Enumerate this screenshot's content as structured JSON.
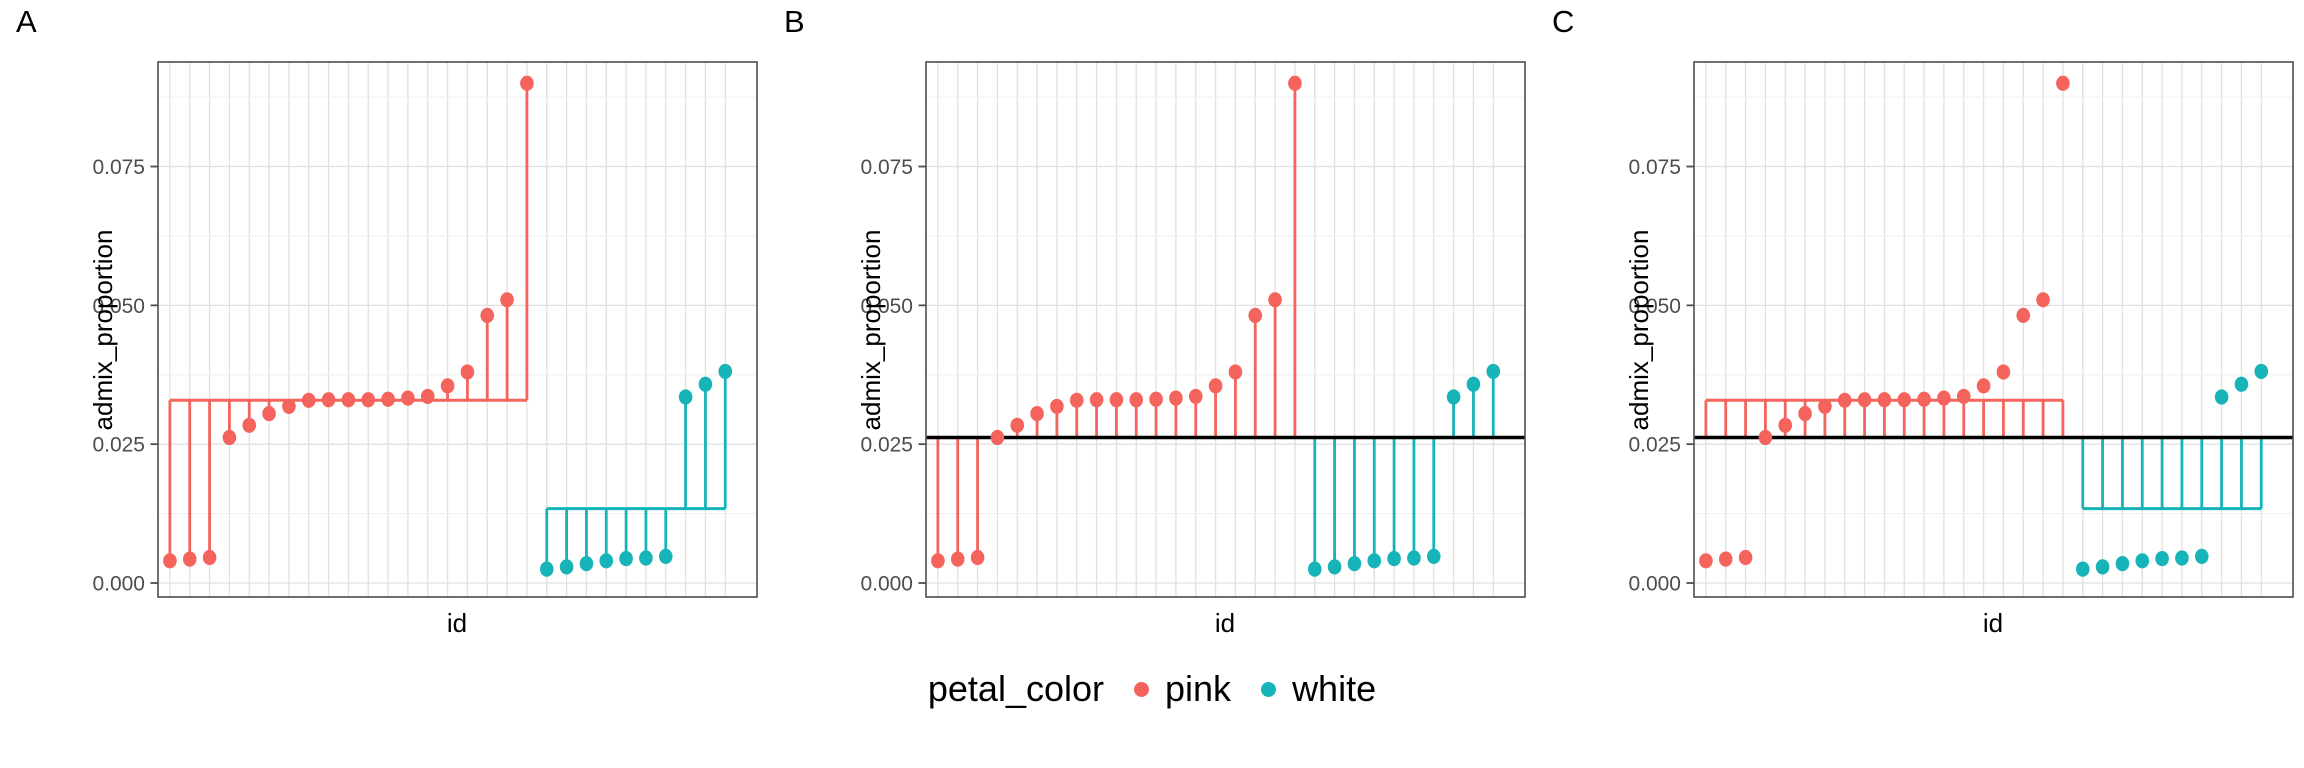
{
  "chart_data": {
    "type": "lollipop",
    "description": "Three-panel lollipop plot of admix_proportion per individual id, grouped by petal_color. Panel A: stems drawn from each group's mean to each point. Panel B: stems drawn from the overall mean (black line) to each point. Panel C: stems drawn between each group's mean and the overall mean (black line), points shown without stems.",
    "xlabel": "id",
    "ylabel": "admix_proportion",
    "yticks": [
      0,
      0.025,
      0.05,
      0.075
    ],
    "ytick_labels": [
      "0.000",
      "0.025",
      "0.050",
      "0.075"
    ],
    "ytick_minor": [
      0.0125,
      0.0375,
      0.0625,
      0.0875
    ],
    "ylim": [
      -0.0025,
      0.0938
    ],
    "n_ids": 29,
    "grid": true,
    "series": [
      {
        "name": "pink",
        "color": "#F4645D",
        "ids": [
          1,
          2,
          3,
          4,
          5,
          6,
          7,
          8,
          9,
          10,
          11,
          12,
          13,
          14,
          15,
          16,
          17,
          18,
          19
        ],
        "values": [
          0.004,
          0.0043,
          0.0046,
          0.0262,
          0.0284,
          0.0305,
          0.0318,
          0.0329,
          0.033,
          0.033,
          0.033,
          0.0331,
          0.0333,
          0.0336,
          0.0355,
          0.038,
          0.0482,
          0.051,
          0.09
        ]
      },
      {
        "name": "white",
        "color": "#16B4B8",
        "ids": [
          20,
          21,
          22,
          23,
          24,
          25,
          26,
          27,
          28,
          29
        ],
        "values": [
          0.0025,
          0.0029,
          0.0035,
          0.004,
          0.0044,
          0.0045,
          0.0048,
          0.0335,
          0.0358,
          0.0381
        ]
      }
    ],
    "group_means": {
      "pink": 0.0329,
      "white": 0.0134
    },
    "overall_mean": 0.0262,
    "overall_mean_color": "#000000",
    "panels": [
      {
        "label": "A",
        "stems": "group_mean_to_points",
        "group_mean_line": true,
        "overall_mean_line": false,
        "point_stems": true
      },
      {
        "label": "B",
        "stems": "overall_mean_to_points",
        "group_mean_line": false,
        "overall_mean_line": true,
        "point_stems": true
      },
      {
        "label": "C",
        "stems": "group_mean_to_overall_mean",
        "group_mean_line": true,
        "overall_mean_line": true,
        "point_stems": false
      }
    ],
    "legend": {
      "title": "petal_color",
      "entries": [
        {
          "label": "pink",
          "color": "#F4645D"
        },
        {
          "label": "white",
          "color": "#16B4B8"
        }
      ]
    },
    "style": {
      "panel_border_color": "#4d4d4d",
      "grid_major_color": "#e0e0e0",
      "grid_minor_color": "#efefef",
      "tick_color": "#4d4d4d",
      "background": "#ffffff"
    }
  }
}
